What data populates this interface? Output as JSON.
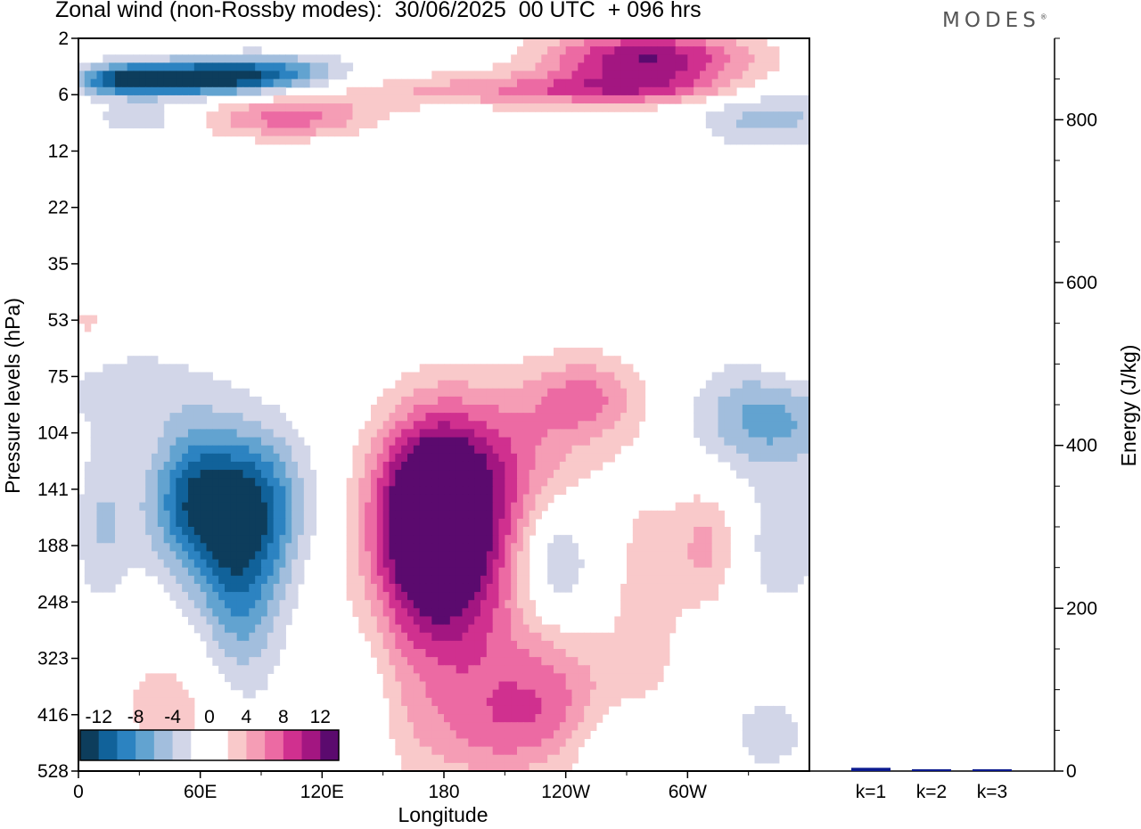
{
  "title": "Zonal wind (non-Rossby modes):  30/06/2025  00 UTC  + 096 hrs",
  "logo": "MODES",
  "chart_data": [
    {
      "type": "heatmap",
      "title": "Zonal wind (non-Rossby modes):  30/06/2025  00 UTC  + 096 hrs",
      "xlabel": "Longitude",
      "ylabel": "Pressure levels (hPa)",
      "x_ticks": [
        "0",
        "60E",
        "120E",
        "180",
        "120W",
        "60W"
      ],
      "x_tick_values": [
        0,
        60,
        120,
        180,
        240,
        300
      ],
      "xlim": [
        0,
        360
      ],
      "y_ticks": [
        "2",
        "6",
        "12",
        "22",
        "35",
        "53",
        "75",
        "104",
        "141",
        "188",
        "248",
        "323",
        "416",
        "528"
      ],
      "grid": false,
      "colorbar": {
        "labels": [
          "-12",
          "-8",
          "-4",
          "0",
          "4",
          "8",
          "12"
        ],
        "levels": [
          -14,
          -12,
          -10,
          -8,
          -6,
          -4,
          -2,
          0,
          2,
          4,
          6,
          8,
          10,
          12,
          14
        ],
        "colors": [
          "#0d3d5c",
          "#11629a",
          "#2c83c1",
          "#62a3d0",
          "#a2bedd",
          "#d2d6e8",
          "#ffffff",
          "#ffffff",
          "#f9c9ca",
          "#f59db5",
          "#ec6aa3",
          "#d0308f",
          "#a31681",
          "#5b0a6e"
        ]
      },
      "features": [
        {
          "lon": 25,
          "lev": 4.5,
          "dlon": 20,
          "dlev": 1.0,
          "value": -11
        },
        {
          "lon": 60,
          "lev": 4.5,
          "dlon": 25,
          "dlev": 1.0,
          "value": -8
        },
        {
          "lon": 90,
          "lev": 4.0,
          "dlon": 30,
          "dlev": 1.0,
          "value": -9
        },
        {
          "lon": 105,
          "lev": 8.0,
          "dlon": 30,
          "dlev": 1.5,
          "value": 7
        },
        {
          "lon": 30,
          "lev": 8.0,
          "dlon": 15,
          "dlev": 1.0,
          "value": -4
        },
        {
          "lon": 280,
          "lev": 3.0,
          "dlon": 35,
          "dlev": 1.5,
          "value": 12
        },
        {
          "lon": 265,
          "lev": 5.5,
          "dlon": 40,
          "dlev": 1.0,
          "value": 6
        },
        {
          "lon": 180,
          "lev": 5.5,
          "dlon": 50,
          "dlev": 1.2,
          "value": 4
        },
        {
          "lon": 340,
          "lev": 8.0,
          "dlon": 25,
          "dlev": 2.0,
          "value": -5
        },
        {
          "lon": 250,
          "lev": 20.0,
          "dlon": 30,
          "dlev": 6.0,
          "value": 2
        },
        {
          "lon": 150,
          "lev": 20.0,
          "dlon": 30,
          "dlev": 10.0,
          "value": -1.5
        },
        {
          "lon": 60,
          "lev": 150.0,
          "dlon": 18,
          "dlev": 40,
          "value": -12
        },
        {
          "lon": 80,
          "lev": 220.0,
          "dlon": 15,
          "dlev": 80,
          "value": -8
        },
        {
          "lon": 95,
          "lev": 150.0,
          "dlon": 15,
          "dlev": 40,
          "value": -6
        },
        {
          "lon": 12,
          "lev": 170.0,
          "dlon": 10,
          "dlev": 50,
          "value": -4
        },
        {
          "lon": 25,
          "lev": 80.0,
          "dlon": 30,
          "dlev": 15,
          "value": -3
        },
        {
          "lon": 170,
          "lev": 160.0,
          "dlon": 18,
          "dlev": 50,
          "value": 12
        },
        {
          "lon": 185,
          "lev": 180.0,
          "dlon": 22,
          "dlev": 70,
          "value": 10
        },
        {
          "lon": 175,
          "lev": 300.0,
          "dlon": 30,
          "dlev": 120,
          "value": 4
        },
        {
          "lon": 210,
          "lev": 120.0,
          "dlon": 30,
          "dlev": 35,
          "value": 5
        },
        {
          "lon": 250,
          "lev": 85.0,
          "dlon": 20,
          "dlev": 15,
          "value": 6
        },
        {
          "lon": 230,
          "lev": 380.0,
          "dlon": 25,
          "dlev": 80,
          "value": 6
        },
        {
          "lon": 205,
          "lev": 460.0,
          "dlon": 30,
          "dlev": 70,
          "value": 3
        },
        {
          "lon": 235,
          "lev": 200.0,
          "dlon": 12,
          "dlev": 40,
          "value": -5
        },
        {
          "lon": 310,
          "lev": 190.0,
          "dlon": 12,
          "dlev": 40,
          "value": 5
        },
        {
          "lon": 340,
          "lev": 95.0,
          "dlon": 25,
          "dlev": 20,
          "value": -7
        },
        {
          "lon": 345,
          "lev": 190.0,
          "dlon": 20,
          "dlev": 50,
          "value": -3
        },
        {
          "lon": 280,
          "lev": 250.0,
          "dlon": 12,
          "dlev": 100,
          "value": 3
        },
        {
          "lon": 45,
          "lev": 400.0,
          "dlon": 20,
          "dlev": 80,
          "value": 3
        },
        {
          "lon": 140,
          "lev": 400.0,
          "dlon": 10,
          "dlev": 100,
          "value": -2.5
        },
        {
          "lon": 270,
          "lev": 470.0,
          "dlon": 20,
          "dlev": 60,
          "value": -3
        },
        {
          "lon": 340,
          "lev": 450.0,
          "dlon": 15,
          "dlev": 60,
          "value": -3
        },
        {
          "lon": 350,
          "lev": 60.0,
          "dlon": 12,
          "dlev": 15,
          "value": 2.5
        },
        {
          "lon": 5,
          "lev": 55.0,
          "dlon": 10,
          "dlev": 8,
          "value": 2.5
        }
      ]
    },
    {
      "type": "bar",
      "categories": [
        "k=1",
        "k=2",
        "k=3"
      ],
      "values": [
        4,
        2,
        1
      ],
      "ylabel": "Energy (J/kg)",
      "ylim": [
        0,
        900
      ],
      "y_ticks": [
        "0",
        "200",
        "400",
        "600",
        "800"
      ],
      "bar_color": "#0b1a8f"
    }
  ]
}
